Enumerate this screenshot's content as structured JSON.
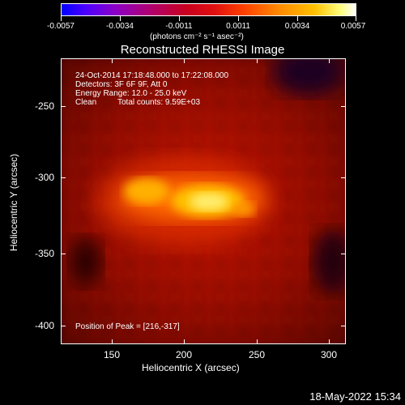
{
  "colorbar": {
    "tick_labels": [
      "-0.0057",
      "-0.0034",
      "-0.0011",
      "0.0011",
      "0.0034",
      "0.0057"
    ],
    "units": "(photons cm⁻² s⁻¹ asec⁻²)",
    "colors": [
      "#0000ff",
      "#8a00c8",
      "#c80020",
      "#ff8a00",
      "#ffff80",
      "#ffffff"
    ]
  },
  "title": "Reconstructed RHESSI Image",
  "info": {
    "line1": "24-Oct-2014 17:18:48.000 to 17:22:08.000",
    "line2": "Detectors: 3F 6F 9F, Att 0",
    "line3": "Energy Range: 12.0 - 25.0 keV",
    "line4_a": "Clean",
    "line4_b": "Total counts: 9.59E+03"
  },
  "peak_label": "Position of Peak = [216,-317]",
  "axes": {
    "xlabel": "Heliocentric X (arcsec)",
    "ylabel": "Heliocentric Y (arcsec)",
    "xticks": [
      "150",
      "200",
      "250",
      "300"
    ],
    "yticks": [
      "-250",
      "-300",
      "-350",
      "-400"
    ]
  },
  "datestamp": "18-May-2022 15:34"
}
